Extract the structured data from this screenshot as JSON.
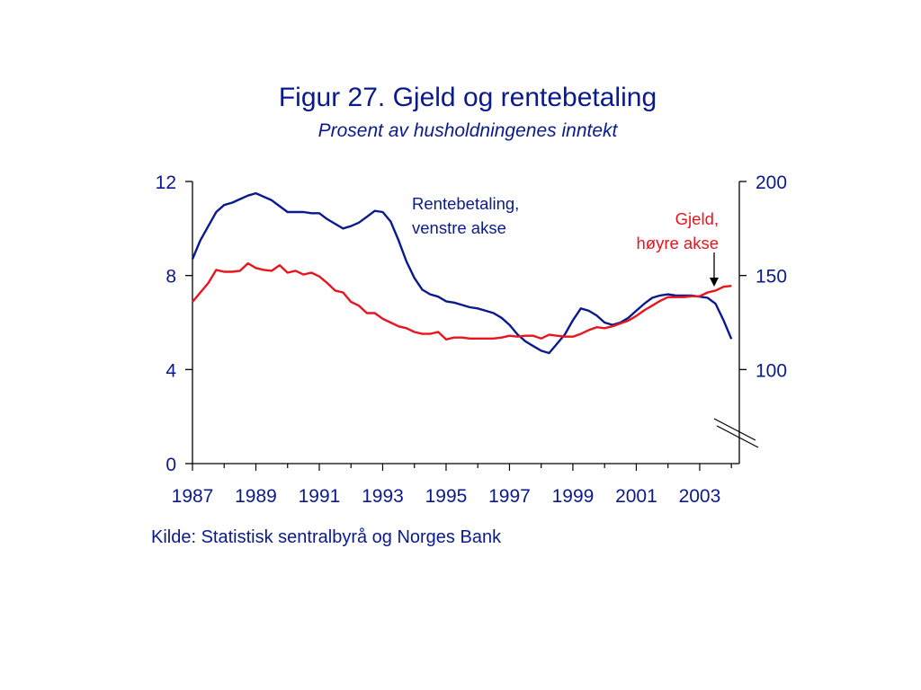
{
  "header": {
    "title": "Figur 27. Gjeld og rentebetaling",
    "subtitle": "Prosent av husholdningenes inntekt"
  },
  "source": "Kilde: Statistisk sentralbyrå og Norges Bank",
  "colors": {
    "text": "#0a1a8c",
    "rentebetaling": "#0a1a8c",
    "gjeld": "#e8141e",
    "axis": "#000000"
  },
  "chart_data": {
    "type": "line",
    "x_tick_labels": [
      "1987",
      "1989",
      "1991",
      "1993",
      "1995",
      "1997",
      "1999",
      "2001",
      "2003"
    ],
    "xlim": [
      1987,
      2004.25
    ],
    "y_left": {
      "ticks": [
        "0",
        "4",
        "8",
        "12"
      ],
      "ylim": [
        0,
        12
      ]
    },
    "y_right": {
      "ticks": [
        "100",
        "150",
        "200"
      ],
      "ylim": [
        50,
        200
      ],
      "axis_break": true
    },
    "annotations": [
      {
        "text": "Rentebetaling,",
        "series": "Rentebetaling"
      },
      {
        "text": "venstre akse",
        "series": "Rentebetaling"
      },
      {
        "text": "Gjeld,",
        "series": "Gjeld"
      },
      {
        "text": "høyre akse",
        "series": "Gjeld"
      }
    ],
    "grid": false,
    "series": [
      {
        "name": "Rentebetaling",
        "axis": "left",
        "x": [
          1987.0,
          1987.25,
          1987.5,
          1987.75,
          1988.0,
          1988.25,
          1988.5,
          1988.75,
          1989.0,
          1989.25,
          1989.5,
          1989.75,
          1990.0,
          1990.25,
          1990.5,
          1990.75,
          1991.0,
          1991.25,
          1991.5,
          1991.75,
          1992.0,
          1992.25,
          1992.5,
          1992.75,
          1993.0,
          1993.25,
          1993.5,
          1993.75,
          1994.0,
          1994.25,
          1994.5,
          1994.75,
          1995.0,
          1995.25,
          1995.5,
          1995.75,
          1996.0,
          1996.25,
          1996.5,
          1996.75,
          1997.0,
          1997.25,
          1997.5,
          1997.75,
          1998.0,
          1998.25,
          1998.5,
          1998.75,
          1999.0,
          1999.25,
          1999.5,
          1999.75,
          2000.0,
          2000.25,
          2000.5,
          2000.75,
          2001.0,
          2001.25,
          2001.5,
          2001.75,
          2002.0,
          2002.25,
          2002.5,
          2002.75,
          2003.0,
          2003.25,
          2003.5,
          2003.75,
          2004.0
        ],
        "values": [
          8.7,
          9.5,
          10.1,
          10.7,
          11.0,
          11.1,
          11.25,
          11.4,
          11.5,
          11.35,
          11.2,
          10.95,
          10.7,
          10.7,
          10.7,
          10.65,
          10.65,
          10.4,
          10.2,
          10.0,
          10.1,
          10.25,
          10.5,
          10.75,
          10.7,
          10.3,
          9.5,
          8.6,
          7.9,
          7.4,
          7.2,
          7.1,
          6.9,
          6.85,
          6.75,
          6.65,
          6.6,
          6.5,
          6.4,
          6.2,
          5.9,
          5.5,
          5.2,
          5.0,
          4.8,
          4.7,
          5.1,
          5.5,
          6.1,
          6.6,
          6.5,
          6.3,
          6.0,
          5.9,
          6.0,
          6.2,
          6.5,
          6.8,
          7.05,
          7.15,
          7.2,
          7.15,
          7.15,
          7.15,
          7.1,
          7.05,
          6.8,
          6.1,
          5.3
        ]
      },
      {
        "name": "Gjeld",
        "axis": "right",
        "x": [
          1987.0,
          1987.25,
          1987.5,
          1987.75,
          1988.0,
          1988.25,
          1988.5,
          1988.75,
          1989.0,
          1989.25,
          1989.5,
          1989.75,
          1990.0,
          1990.25,
          1990.5,
          1990.75,
          1991.0,
          1991.25,
          1991.5,
          1991.75,
          1992.0,
          1992.25,
          1992.5,
          1992.75,
          1993.0,
          1993.25,
          1993.5,
          1993.75,
          1994.0,
          1994.25,
          1994.5,
          1994.75,
          1995.0,
          1995.25,
          1995.5,
          1995.75,
          1996.0,
          1996.25,
          1996.5,
          1996.75,
          1997.0,
          1997.25,
          1997.5,
          1997.75,
          1998.0,
          1998.25,
          1998.5,
          1998.75,
          1999.0,
          1999.25,
          1999.5,
          1999.75,
          2000.0,
          2000.25,
          2000.5,
          2000.75,
          2001.0,
          2001.25,
          2001.5,
          2001.75,
          2002.0,
          2002.25,
          2002.5,
          2002.75,
          2003.0,
          2003.25,
          2003.5,
          2003.75,
          2004.0
        ],
        "values": [
          136,
          141,
          146,
          153,
          152,
          152,
          152.5,
          156.5,
          154,
          153,
          152.5,
          155.5,
          151.5,
          152.5,
          150.5,
          151.5,
          149.5,
          146,
          142,
          141,
          136,
          134,
          130,
          130,
          127,
          125,
          123,
          122,
          120,
          119,
          119,
          120,
          116,
          117,
          117,
          116.5,
          116.5,
          116.5,
          116.5,
          117,
          118,
          117.5,
          118,
          118,
          116.5,
          118.5,
          118,
          117.5,
          117.5,
          119,
          121,
          122.5,
          122,
          123,
          124.5,
          126,
          128.5,
          131.5,
          134,
          136.5,
          138.5,
          138.5,
          138.5,
          139,
          139,
          141,
          142,
          144,
          144.5
        ]
      }
    ]
  }
}
